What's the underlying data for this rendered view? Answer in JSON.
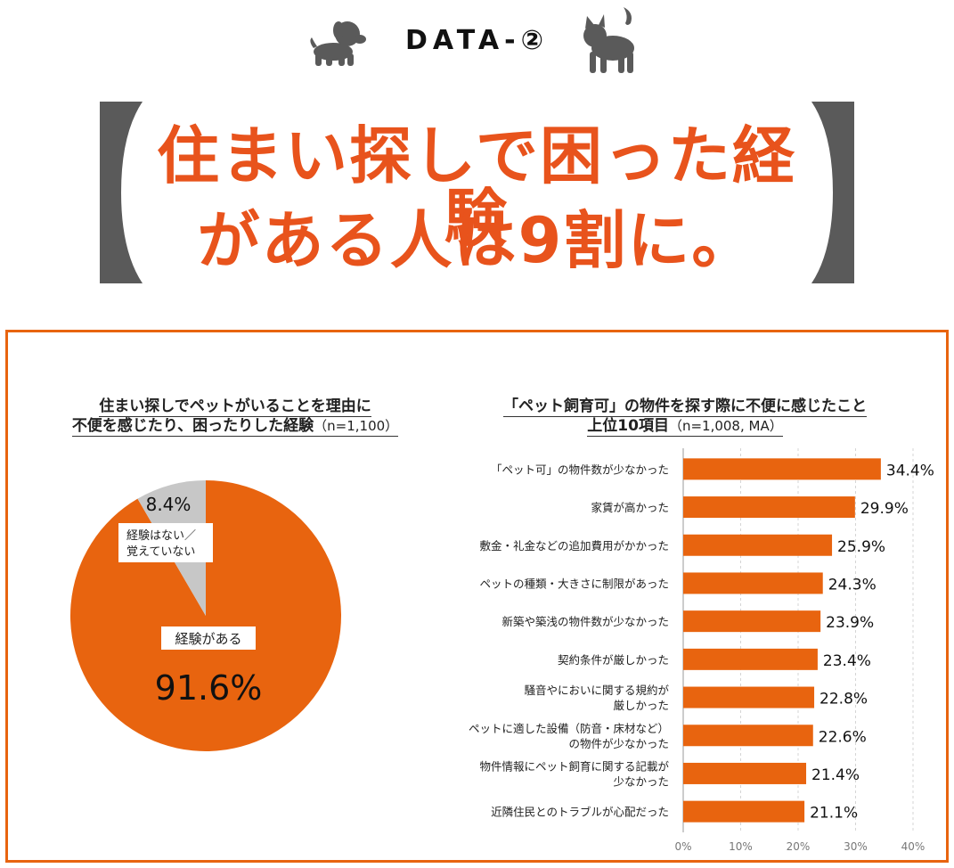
{
  "header": {
    "tag": "DATA-②",
    "headline_line1": "住まい探しで困った経験",
    "headline_line2": "がある人は9割に。"
  },
  "pie_panel": {
    "title_line1": "住まい探しでペットがいることを理由に",
    "title_line2": "不便を感じたり、困ったりした経験",
    "sample": "（n=1,100）"
  },
  "bar_panel": {
    "title_line1": "「ペット飼育可」の物件を探す際に不便に感じたこと",
    "title_line2": "上位10項目",
    "sample": "（n=1,008, MA）"
  },
  "colors": {
    "accent": "#e8640f",
    "headline": "#e8531c",
    "grey": "#c7c7c7",
    "icon": "#5a5a5a"
  },
  "chart_data": [
    {
      "type": "pie",
      "slices": [
        {
          "label": "経験がある",
          "value": 91.6,
          "display": "91.6%",
          "color": "#e8640f"
        },
        {
          "label": "経験はない／覚えていない",
          "value": 8.4,
          "display": "8.4%",
          "color": "#c7c7c7"
        }
      ]
    },
    {
      "type": "bar",
      "orientation": "horizontal",
      "categories": [
        "「ペット可」の物件数が少なかった",
        "家賃が高かった",
        "敷金・礼金などの追加費用がかかった",
        "ペットの種類・大きさに制限があった",
        "新築や築浅の物件数が少なかった",
        "契約条件が厳しかった",
        "騒音やにおいに関する規約が厳しかった",
        "ペットに適した設備（防音・床材など）の物件が少なかった",
        "物件情報にペット飼育に関する記載が少なかった",
        "近隣住民とのトラブルが心配だった"
      ],
      "category_lines": [
        [
          "「ペット可」の物件数が少なかった"
        ],
        [
          "家賃が高かった"
        ],
        [
          "敷金・礼金などの追加費用がかかった"
        ],
        [
          "ペットの種類・大きさに制限があった"
        ],
        [
          "新築や築浅の物件数が少なかった"
        ],
        [
          "契約条件が厳しかった"
        ],
        [
          "騒音やにおいに関する規約が",
          "厳しかった"
        ],
        [
          "ペットに適した設備（防音・床材など）",
          "の物件が少なかった"
        ],
        [
          "物件情報にペット飼育に関する記載が",
          "少なかった"
        ],
        [
          "近隣住民とのトラブルが心配だった"
        ]
      ],
      "values": [
        34.4,
        29.9,
        25.9,
        24.3,
        23.9,
        23.4,
        22.8,
        22.6,
        21.4,
        21.1
      ],
      "value_labels": [
        "34.4%",
        "29.9%",
        "25.9%",
        "24.3%",
        "23.9%",
        "23.4%",
        "22.8%",
        "22.6%",
        "21.4%",
        "21.1%"
      ],
      "xlim": [
        0,
        40
      ],
      "ticks": [
        "0%",
        "10%",
        "20%",
        "30%",
        "40%"
      ],
      "grid": true,
      "bar_color": "#e8640f"
    }
  ]
}
